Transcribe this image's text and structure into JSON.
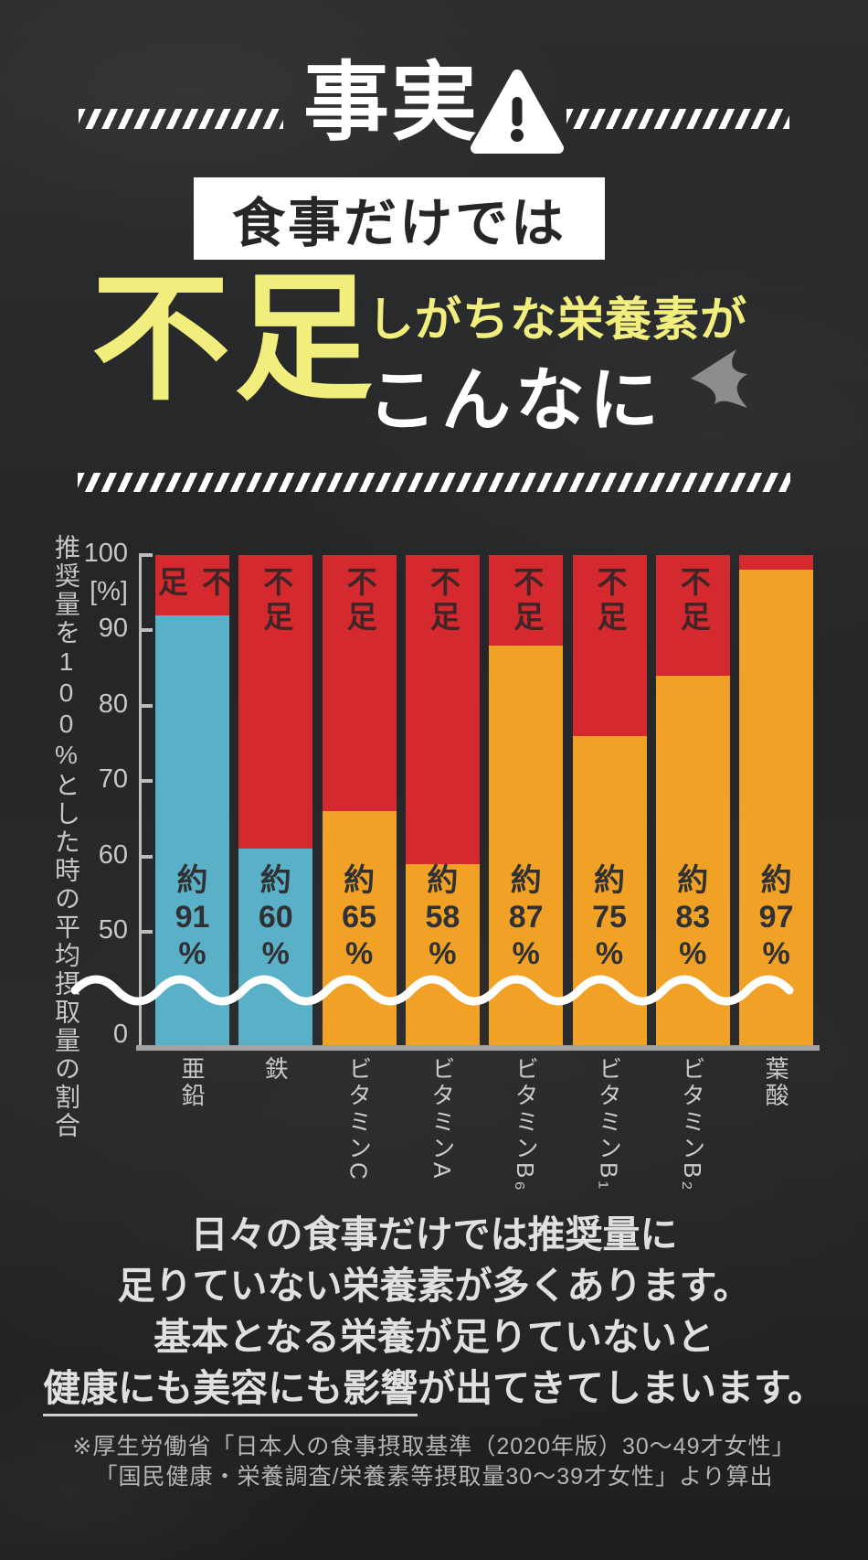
{
  "header": {
    "title": "事実",
    "box_text": "食事だけでは"
  },
  "headline": {
    "highlight_word": "不足",
    "top_text": "しがちな栄養素が",
    "bottom_text": "こんなに"
  },
  "icons": {
    "warning": "warning-triangle-icon",
    "arrow": "swoosh-arrow-icon"
  },
  "colors": {
    "background": "#242628",
    "accent_yellow": "#f2ee7d",
    "deficit_red": "#d4292e",
    "intake_blue": "#5ab1c7",
    "intake_orange": "#f0a126",
    "axis_gray": "#bdbdbd",
    "text_light": "#e0e0e0"
  },
  "chart_data": {
    "type": "bar",
    "stacked": true,
    "ylabel": "推奨量を100%とした時の平均摂取量の割合",
    "y_unit_label": "[%]",
    "y_ticks": [
      100,
      90,
      80,
      70,
      60,
      50
    ],
    "y_zero_label": "0",
    "ylim": [
      0,
      100
    ],
    "axis_break_wave": true,
    "grid": false,
    "legend_position": "none",
    "categories": [
      "亜鉛",
      "鉄",
      "ビタミンC",
      "ビタミンA",
      "ビタミンB₆",
      "ビタミンB₁",
      "ビタミンB₂",
      "葉酸"
    ],
    "series": [
      {
        "name": "平均摂取量（約）",
        "values": [
          91,
          60,
          65,
          58,
          87,
          75,
          83,
          97
        ]
      },
      {
        "name": "不足",
        "values": [
          9,
          40,
          35,
          42,
          13,
          25,
          17,
          3
        ]
      }
    ],
    "value_prefix": "約",
    "value_suffix": "%",
    "deficit_color": "#d4292e",
    "bars": [
      {
        "category": "亜鉛",
        "value": 91,
        "value_label": "約91%",
        "drawn_pct": 92,
        "color": "#5ab1c7",
        "deficit_label": "不足"
      },
      {
        "category": "鉄",
        "value": 60,
        "value_label": "約60%",
        "drawn_pct": 61,
        "color": "#5ab1c7",
        "deficit_label": "不足"
      },
      {
        "category": "ビタミンC",
        "value": 65,
        "value_label": "約65%",
        "drawn_pct": 66,
        "color": "#f0a126",
        "deficit_label": "不足"
      },
      {
        "category": "ビタミンA",
        "value": 58,
        "value_label": "約58%",
        "drawn_pct": 59,
        "color": "#f0a126",
        "deficit_label": "不足"
      },
      {
        "category": "ビタミンB₆",
        "value": 87,
        "value_label": "約87%",
        "drawn_pct": 88,
        "color": "#f0a126",
        "deficit_label": "不足"
      },
      {
        "category": "ビタミンB₁",
        "value": 75,
        "value_label": "約75%",
        "drawn_pct": 76,
        "color": "#f0a126",
        "deficit_label": "不足"
      },
      {
        "category": "ビタミンB₂",
        "value": 83,
        "value_label": "約83%",
        "drawn_pct": 84,
        "color": "#f0a126",
        "deficit_label": "不足"
      },
      {
        "category": "葉酸",
        "value": 97,
        "value_label": "約97%",
        "drawn_pct": 98,
        "color": "#f0a126",
        "deficit_label": ""
      }
    ]
  },
  "message": {
    "lines": [
      "日々の食事だけでは推奨量に",
      "足りていない栄養素が多くあります。",
      "基本となる栄養が足りていないと"
    ],
    "line4_underlined": "健康にも美容にも影響",
    "line4_rest": "が出てきてしまいます。"
  },
  "footnote": {
    "lines": [
      "※厚生労働省「日本人の食事摂取基準（2020年版）30〜49才女性」",
      "「国民健康・栄養調査/栄養素等摂取量30〜39才女性」より算出"
    ]
  }
}
